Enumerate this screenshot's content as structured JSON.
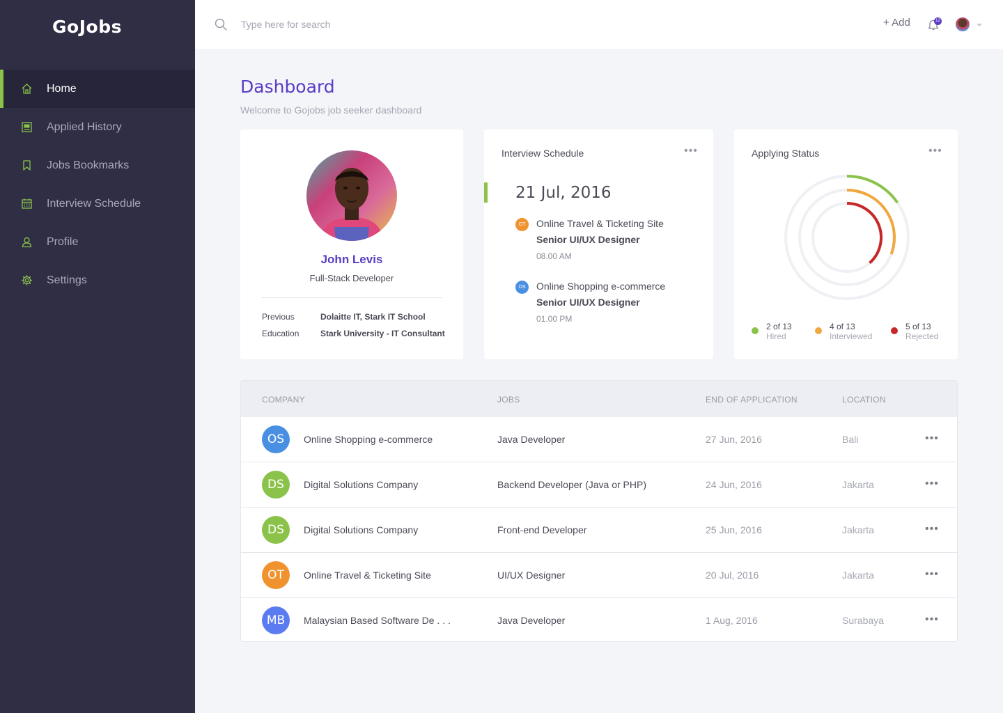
{
  "app": {
    "brand": "GoJobs"
  },
  "sidebar": {
    "items": [
      {
        "label": "Home",
        "icon": "home-icon",
        "active": true
      },
      {
        "label": "Applied History",
        "icon": "document-icon"
      },
      {
        "label": "Jobs Bookmarks",
        "icon": "bookmark-icon"
      },
      {
        "label": "Interview Schedule",
        "icon": "calendar-icon"
      },
      {
        "label": "Profile",
        "icon": "user-icon"
      },
      {
        "label": "Settings",
        "icon": "gear-icon"
      }
    ],
    "accent": "#8bc34a"
  },
  "topbar": {
    "search_placeholder": "Type here for search",
    "add_label": "+ Add",
    "notification_count": "12"
  },
  "header": {
    "title": "Dashboard",
    "subtitle": "Welcome to Gojobs job seeker dashboard"
  },
  "profile": {
    "name": "John Levis",
    "role": "Full-Stack Developer",
    "previous_label": "Previous",
    "previous_value": "Dolaitte IT, Stark IT School",
    "education_label": "Education",
    "education_value": "Stark University - IT Consultant"
  },
  "schedule": {
    "title": "Interview Schedule",
    "more": "•••",
    "date": "21 Jul, 2016",
    "items": [
      {
        "initials": "OT",
        "color": "#f0922e",
        "company": "Online Travel & Ticketing Site",
        "role": "Senior UI/UX Designer",
        "time": "08.00 AM"
      },
      {
        "initials": "OS",
        "color": "#4a90e2",
        "company": "Online Shopping e-commerce",
        "role": "Senior UI/UX Designer",
        "time": "01.00 PM"
      }
    ]
  },
  "status": {
    "title": "Applying Status",
    "more": "•••",
    "total": 13,
    "items": [
      {
        "value": "2 of 13",
        "label": "Hired",
        "count": 2,
        "color": "#8bc34a"
      },
      {
        "value": "4 of 13",
        "label": "Interviewed",
        "count": 4,
        "color": "#f0a73e"
      },
      {
        "value": "5 of 13",
        "label": "Rejected",
        "count": 5,
        "color": "#c62828"
      }
    ]
  },
  "table": {
    "headers": [
      "COMPANY",
      "JOBS",
      "END OF APPLICATION",
      "LOCATION"
    ],
    "rows": [
      {
        "initials": "OS",
        "color": "#4a90e2",
        "company": "Online Shopping e-commerce",
        "job": "Java Developer",
        "end": "27 Jun, 2016",
        "location": "Bali"
      },
      {
        "initials": "DS",
        "color": "#8bc34a",
        "company": "Digital Solutions Company",
        "job": "Backend Developer (Java or PHP)",
        "end": "24 Jun, 2016",
        "location": "Jakarta"
      },
      {
        "initials": "DS",
        "color": "#8bc34a",
        "company": "Digital Solutions Company",
        "job": "Front-end Developer",
        "end": "25 Jun, 2016",
        "location": "Jakarta"
      },
      {
        "initials": "OT",
        "color": "#f0922e",
        "company": "Online Travel & Ticketing Site",
        "job": "UI/UX Designer",
        "end": "20 Jul, 2016",
        "location": "Jakarta"
      },
      {
        "initials": "MB",
        "color": "#5b7cf0",
        "company": "Malaysian Based Software De . . .",
        "job": "Java Developer",
        "end": "1 Aug, 2016",
        "location": "Surabaya"
      }
    ],
    "row_more": "•••"
  }
}
